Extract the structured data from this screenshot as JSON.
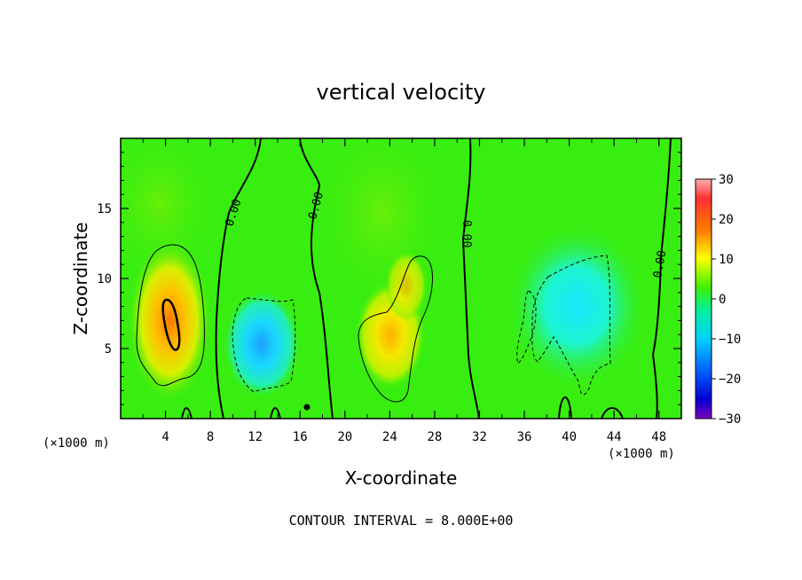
{
  "chart_data": {
    "type": "heatmap",
    "title": "vertical velocity",
    "xlabel": "X-coordinate",
    "ylabel": "Z-coordinate",
    "x_unit": "(×1000 m)",
    "z_unit": "(×1000 m)",
    "xlim": [
      0,
      50
    ],
    "ylim": [
      0,
      20
    ],
    "x_ticks": [
      4,
      8,
      12,
      16,
      20,
      24,
      28,
      32,
      36,
      40,
      44,
      48
    ],
    "y_ticks": [
      5,
      10,
      15
    ],
    "colorbar": {
      "min": -30,
      "max": 30,
      "ticks": [
        30,
        20,
        10,
        0,
        -10,
        -20,
        -30
      ],
      "tick_labels": [
        "30",
        "20",
        "10",
        "0",
        "−10",
        "−20",
        "−30"
      ]
    },
    "contour_interval_text": "CONTOUR INTERVAL = 8.000E+00",
    "contour_labels": [
      "0.00",
      "0.00",
      "0.00",
      "0.00"
    ],
    "field_features": [
      {
        "x": 4.5,
        "z": 7,
        "value": 17
      },
      {
        "x": 12.8,
        "z": 5,
        "value": -12
      },
      {
        "x": 24,
        "z": 5.5,
        "value": 11
      },
      {
        "x": 26,
        "z": 8,
        "value": 7
      },
      {
        "x": 40,
        "z": 7,
        "value": -8
      }
    ]
  }
}
